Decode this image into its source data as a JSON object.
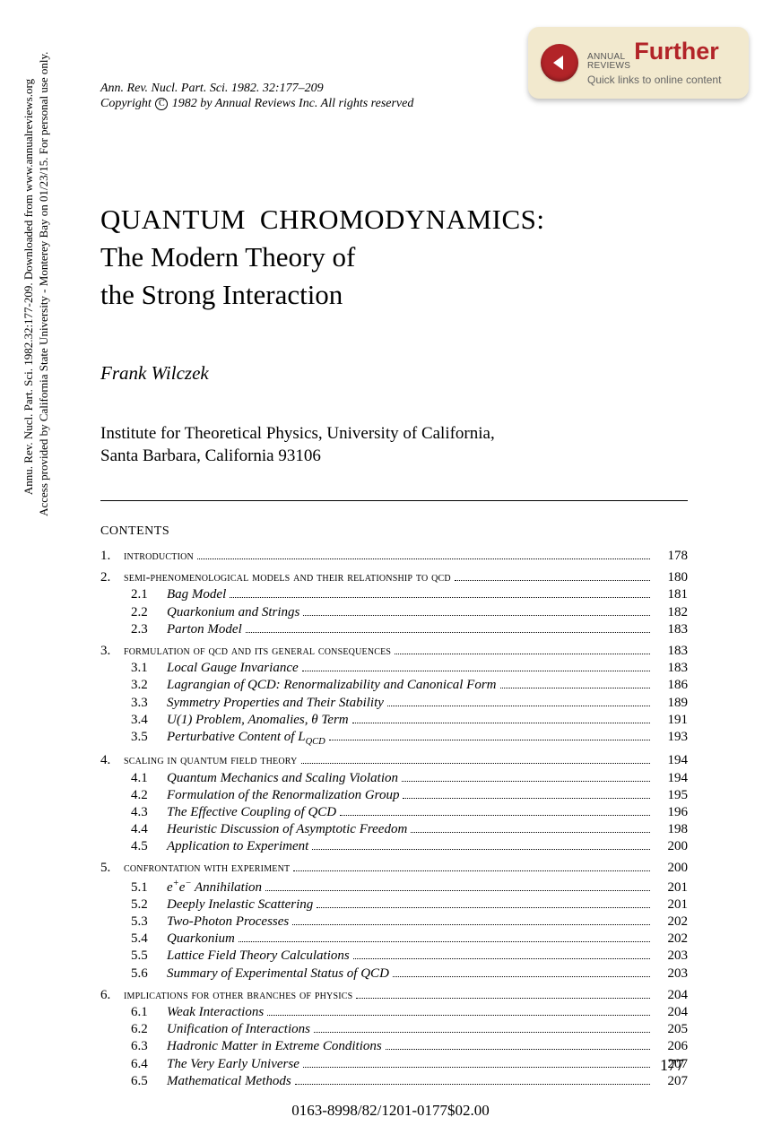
{
  "badge": {
    "annual": "ANNUAL",
    "reviews": "REVIEWS",
    "further": "Further",
    "sub": "Quick links to online content",
    "bg_color": "#f2e9ce",
    "accent_color": "#b22428"
  },
  "header": {
    "ref": "Ann. Rev. Nucl. Part. Sci. 1982. 32:177–209",
    "copyright_pre": "Copyright ",
    "copyright_sym": "C",
    "copyright_post": " 1982 by Annual Reviews Inc. All rights reserved"
  },
  "title": {
    "line1": "QUANTUM CHROMODYNAMICS:",
    "line2": "The Modern Theory of",
    "line3": "the Strong Interaction"
  },
  "author": "Frank Wilczek",
  "affiliation": {
    "line1": "Institute for Theoretical Physics, University of California,",
    "line2": "Santa Barbara, California 93106"
  },
  "contents_label": "CONTENTS",
  "toc": [
    {
      "type": "sec",
      "num": "1.",
      "title": "introduction",
      "page": "178"
    },
    {
      "type": "gap"
    },
    {
      "type": "sec",
      "num": "2.",
      "title": "semi-phenomenological models and their relationship to qcd",
      "page": "180"
    },
    {
      "type": "sub",
      "num": "2.1",
      "title": "Bag Model",
      "page": "181"
    },
    {
      "type": "sub",
      "num": "2.2",
      "title": "Quarkonium and Strings",
      "page": "182"
    },
    {
      "type": "sub",
      "num": "2.3",
      "title": "Parton Model",
      "page": "183"
    },
    {
      "type": "gap"
    },
    {
      "type": "sec",
      "num": "3.",
      "title": "formulation of qcd and its general consequences",
      "page": "183"
    },
    {
      "type": "sub",
      "num": "3.1",
      "title": "Local Gauge Invariance",
      "page": "183"
    },
    {
      "type": "sub",
      "num": "3.2",
      "title": "Lagrangian of QCD: Renormalizability and Canonical Form",
      "page": "186"
    },
    {
      "type": "sub",
      "num": "3.3",
      "title": "Symmetry Properties and Their Stability",
      "page": "189"
    },
    {
      "type": "sub",
      "num": "3.4",
      "title_html": "U(1) Problem, Anomalies, θ Term",
      "page": "191"
    },
    {
      "type": "sub",
      "num": "3.5",
      "title_html": "Perturbative Content of L<sub>QCD</sub>",
      "page": "193"
    },
    {
      "type": "gap"
    },
    {
      "type": "sec",
      "num": "4.",
      "title": "scaling in quantum field theory",
      "page": "194"
    },
    {
      "type": "sub",
      "num": "4.1",
      "title": "Quantum Mechanics and Scaling Violation",
      "page": "194"
    },
    {
      "type": "sub",
      "num": "4.2",
      "title": "Formulation of the Renormalization Group",
      "page": "195"
    },
    {
      "type": "sub",
      "num": "4.3",
      "title": "The Effective Coupling of QCD",
      "page": "196"
    },
    {
      "type": "sub",
      "num": "4.4",
      "title": "Heuristic Discussion of Asymptotic Freedom",
      "page": "198"
    },
    {
      "type": "sub",
      "num": "4.5",
      "title": "Application to Experiment",
      "page": "200"
    },
    {
      "type": "gap"
    },
    {
      "type": "sec",
      "num": "5.",
      "title": "confrontation with experiment",
      "page": "200"
    },
    {
      "type": "sub",
      "num": "5.1",
      "title_html": "e<sup>+</sup>e<sup>−</sup> Annihilation",
      "page": "201"
    },
    {
      "type": "sub",
      "num": "5.2",
      "title": "Deeply Inelastic Scattering",
      "page": "201"
    },
    {
      "type": "sub",
      "num": "5.3",
      "title": "Two-Photon Processes",
      "page": "202"
    },
    {
      "type": "sub",
      "num": "5.4",
      "title": "Quarkonium",
      "page": "202"
    },
    {
      "type": "sub",
      "num": "5.5",
      "title": "Lattice Field Theory Calculations",
      "page": "203"
    },
    {
      "type": "sub",
      "num": "5.6",
      "title": "Summary of Experimental Status of QCD",
      "page": "203"
    },
    {
      "type": "gap"
    },
    {
      "type": "sec",
      "num": "6.",
      "title": "implications for other branches of physics",
      "page": "204"
    },
    {
      "type": "sub",
      "num": "6.1",
      "title": "Weak Interactions",
      "page": "204"
    },
    {
      "type": "sub",
      "num": "6.2",
      "title": "Unification of Interactions",
      "page": "205"
    },
    {
      "type": "sub",
      "num": "6.3",
      "title": "Hadronic Matter in Extreme Conditions",
      "page": "206"
    },
    {
      "type": "sub",
      "num": "6.4",
      "title": "The Very Early Universe",
      "page": "207"
    },
    {
      "type": "sub",
      "num": "6.5",
      "title": "Mathematical Methods",
      "page": "207"
    }
  ],
  "page_number": "177",
  "footer_code": "0163-8998/82/1201-0177$02.00",
  "sidebar": {
    "line1": "Annu. Rev. Nucl. Part. Sci. 1982.32:177-209. Downloaded from www.annualreviews.org",
    "line2": " Access provided by California State University - Monterey Bay on 01/23/15. For personal use only."
  }
}
